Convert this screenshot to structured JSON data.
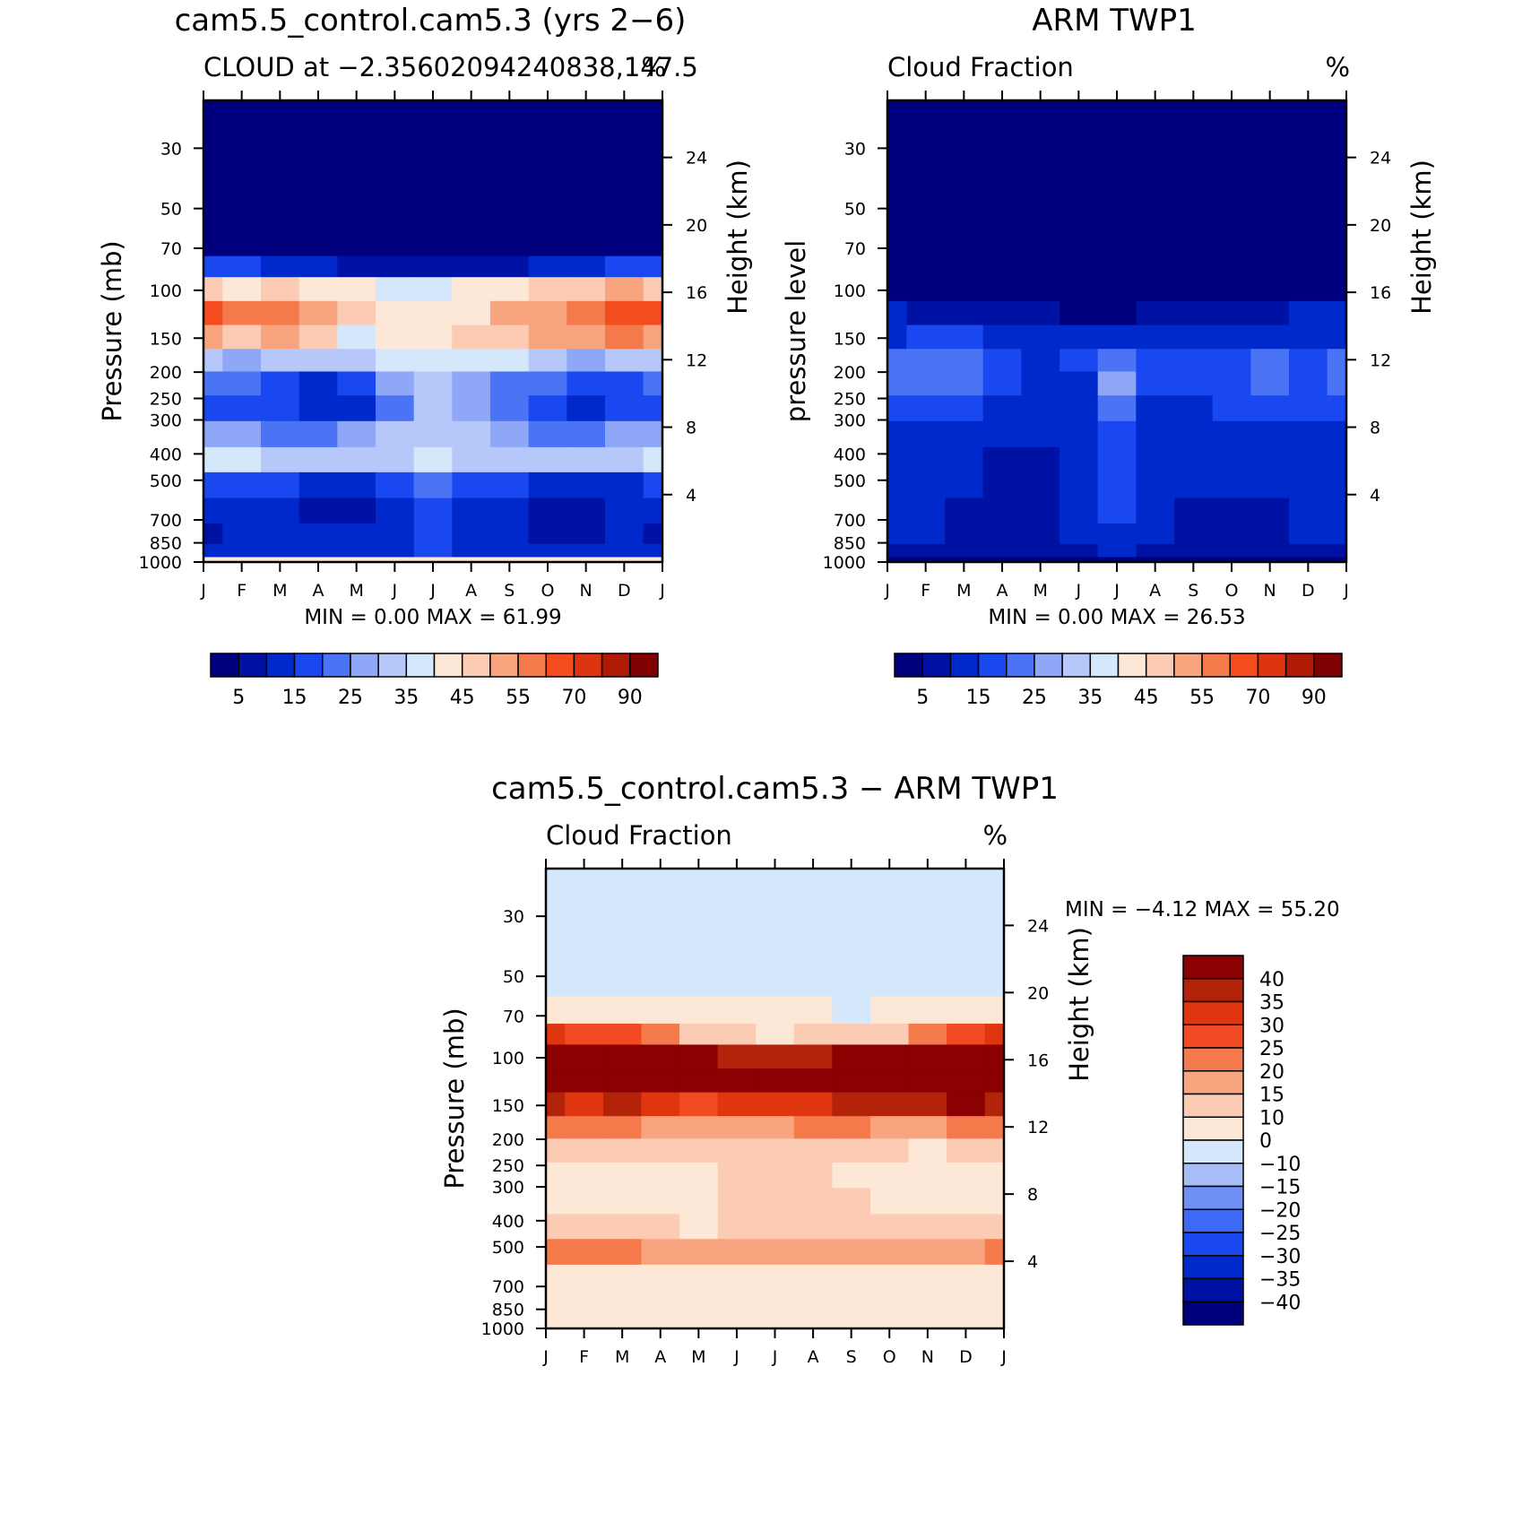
{
  "colors": {
    "full_scale": [
      "#00007f",
      "#0012a3",
      "#0029cc",
      "#1a48f0",
      "#4a73f5",
      "#8ea8f7",
      "#b6c8fa",
      "#d4e7fb",
      "#fde7d6",
      "#fccbb3",
      "#f8a47f",
      "#f57a4b",
      "#f34d1f",
      "#dc3510",
      "#ae1a06",
      "#7f0000"
    ],
    "diff_scale": [
      "#00007f",
      "#0012a3",
      "#0029cc",
      "#1a48f0",
      "#3d6af5",
      "#6f90f6",
      "#a6bdf8",
      "#d4e7fb",
      "#fde7d6",
      "#fccbb3",
      "#f8a47f",
      "#f57a4b",
      "#f24a22",
      "#df3610",
      "#b3230a",
      "#8b0000"
    ]
  },
  "chart_data": [
    {
      "name": "model",
      "type": "heatmap",
      "title": "cam5.5_control.cam5.3 (yrs 2-6)",
      "subtitle_left": "CLOUD at -2.35602094240838,147.5",
      "subtitle_right": "%",
      "ylabel": "Pressure (mb)",
      "ylabel_right": "Height (km)",
      "x_ticks": [
        "J",
        "F",
        "M",
        "A",
        "M",
        "J",
        "J",
        "A",
        "S",
        "O",
        "N",
        "D",
        "J"
      ],
      "y_ticks": [
        "30",
        "50",
        "70",
        "100",
        "150",
        "200",
        "250",
        "300",
        "400",
        "500",
        "700",
        "850",
        "1000"
      ],
      "y_ticks_values": [
        30,
        50,
        70,
        100,
        150,
        200,
        250,
        300,
        400,
        500,
        700,
        850,
        1000
      ],
      "ylim": [
        20,
        1000
      ],
      "y_scale": "log",
      "height_ticks": [
        "24",
        "20",
        "16",
        "12",
        "8",
        "4"
      ],
      "height_ticks_values": [
        24,
        20,
        16,
        12,
        8,
        4
      ],
      "stats": {
        "min_label": "MIN =",
        "min": "0.00",
        "max_label": "MAX =",
        "max": "61.99"
      },
      "colorbar_levels": [
        "5",
        "15",
        "25",
        "35",
        "45",
        "55",
        "70",
        "90"
      ],
      "levels": [
        20,
        50,
        70,
        80,
        100,
        120,
        150,
        180,
        220,
        270,
        340,
        420,
        520,
        650,
        800,
        920,
        1000
      ],
      "months": [
        0,
        1,
        2,
        3,
        4,
        5,
        6,
        7,
        8,
        9,
        10,
        11,
        12
      ],
      "values": [
        [
          1,
          1,
          1,
          1,
          1,
          1,
          1,
          1,
          1,
          1,
          1,
          1,
          1
        ],
        [
          1,
          1,
          1,
          1,
          1,
          1,
          1,
          1,
          1,
          1,
          1,
          1,
          1
        ],
        [
          3,
          3,
          2,
          2,
          1,
          1,
          1,
          1,
          1,
          2,
          2,
          3,
          3
        ],
        [
          18,
          16,
          14,
          11,
          8,
          6,
          5,
          5,
          7,
          10,
          14,
          16,
          18
        ],
        [
          48,
          44,
          46,
          42,
          40,
          38,
          38,
          40,
          44,
          48,
          46,
          50,
          48
        ],
        [
          60,
          56,
          59,
          52,
          48,
          44,
          40,
          42,
          50,
          54,
          56,
          62,
          60
        ],
        [
          52,
          47,
          54,
          45,
          38,
          42,
          44,
          46,
          49,
          50,
          51,
          55,
          52
        ],
        [
          32,
          28,
          33,
          30,
          32,
          36,
          38,
          38,
          36,
          32,
          29,
          30,
          32
        ],
        [
          22,
          20,
          18,
          14,
          18,
          26,
          30,
          28,
          24,
          20,
          17,
          19,
          22
        ],
        [
          18,
          17,
          15,
          11,
          14,
          24,
          30,
          27,
          21,
          16,
          13,
          16,
          18
        ],
        [
          28,
          26,
          24,
          22,
          25,
          30,
          34,
          31,
          27,
          24,
          22,
          25,
          28
        ],
        [
          36,
          36,
          34,
          30,
          30,
          34,
          36,
          34,
          32,
          31,
          30,
          32,
          36
        ],
        [
          18,
          18,
          16,
          12,
          12,
          17,
          22,
          19,
          16,
          13,
          12,
          14,
          18
        ],
        [
          10,
          10,
          10,
          9,
          9,
          12,
          16,
          14,
          11,
          9,
          9,
          10,
          10
        ],
        [
          9,
          10,
          10,
          10,
          10,
          14,
          17,
          14,
          10,
          9,
          9,
          10,
          9
        ],
        [
          12,
          12,
          12,
          12,
          12,
          14,
          15,
          14,
          12,
          12,
          12,
          12,
          12
        ],
        [
          40,
          40,
          40,
          40,
          40,
          40,
          40,
          40,
          40,
          40,
          40,
          40,
          40
        ]
      ]
    },
    {
      "name": "obs",
      "type": "heatmap",
      "title": "ARM TWP1",
      "subtitle_left": "Cloud Fraction",
      "subtitle_right": "%",
      "ylabel": "pressure level",
      "ylabel_right": "Height (km)",
      "x_ticks": [
        "J",
        "F",
        "M",
        "A",
        "M",
        "J",
        "J",
        "A",
        "S",
        "O",
        "N",
        "D",
        "J"
      ],
      "y_ticks": [
        "30",
        "50",
        "70",
        "100",
        "150",
        "200",
        "250",
        "300",
        "400",
        "500",
        "700",
        "850",
        "1000"
      ],
      "y_ticks_values": [
        30,
        50,
        70,
        100,
        150,
        200,
        250,
        300,
        400,
        500,
        700,
        850,
        1000
      ],
      "ylim": [
        20,
        1000
      ],
      "y_scale": "log",
      "height_ticks": [
        "24",
        "20",
        "16",
        "12",
        "8",
        "4"
      ],
      "height_ticks_values": [
        24,
        20,
        16,
        12,
        8,
        4
      ],
      "stats": {
        "min_label": "MIN =",
        "min": "0.00",
        "max_label": "MAX =",
        "max": "26.53"
      },
      "colorbar_levels": [
        "5",
        "15",
        "25",
        "35",
        "45",
        "55",
        "70",
        "90"
      ],
      "levels": [
        20,
        50,
        70,
        80,
        100,
        120,
        150,
        180,
        220,
        270,
        340,
        420,
        520,
        650,
        800,
        920,
        1000
      ],
      "months": [
        0,
        1,
        2,
        3,
        4,
        5,
        6,
        7,
        8,
        9,
        10,
        11,
        12
      ],
      "values": [
        [
          0,
          0,
          0,
          0,
          0,
          0,
          0,
          0,
          0,
          0,
          0,
          0,
          0
        ],
        [
          0,
          0,
          0,
          0,
          0,
          0,
          0,
          0,
          0,
          0,
          0,
          0,
          0
        ],
        [
          0,
          0,
          0,
          0,
          0,
          0,
          0,
          0,
          0,
          0,
          0,
          0,
          0
        ],
        [
          1,
          1,
          1,
          1,
          1,
          1,
          1,
          1,
          1,
          1,
          1,
          1,
          1
        ],
        [
          4,
          3,
          2,
          1,
          1,
          1,
          1,
          2,
          3,
          3,
          4,
          4,
          4
        ],
        [
          10,
          9,
          8,
          6,
          5,
          4,
          4,
          5,
          7,
          8,
          9,
          10,
          10
        ],
        [
          14,
          15,
          15,
          13,
          12,
          12,
          13,
          13,
          14,
          13,
          13,
          13,
          14
        ],
        [
          21,
          21,
          21,
          17,
          14,
          15,
          20,
          17,
          16,
          19,
          21,
          18,
          21
        ],
        [
          20,
          21,
          20,
          17,
          13,
          14,
          25,
          17,
          15,
          19,
          22,
          18,
          20
        ],
        [
          19,
          19,
          16,
          14,
          12,
          14,
          20,
          14,
          13,
          18,
          19,
          17,
          19
        ],
        [
          14,
          14,
          12,
          10,
          11,
          13,
          16,
          13,
          12,
          13,
          14,
          13,
          14
        ],
        [
          13,
          13,
          10,
          8,
          9,
          14,
          16,
          13,
          11,
          11,
          12,
          13,
          13
        ],
        [
          13,
          13,
          10,
          6,
          9,
          14,
          16,
          13,
          10,
          10,
          11,
          13,
          13
        ],
        [
          12,
          12,
          9,
          5,
          8,
          12,
          15,
          12,
          9,
          6,
          7,
          11,
          12
        ],
        [
          11,
          11,
          9,
          6,
          8,
          11,
          14,
          11,
          9,
          5,
          6,
          10,
          11
        ],
        [
          9,
          9,
          8,
          6,
          7,
          9,
          10,
          9,
          8,
          6,
          7,
          9,
          9
        ],
        [
          4,
          4,
          4,
          4,
          4,
          4,
          4,
          4,
          4,
          4,
          4,
          4,
          4
        ]
      ]
    },
    {
      "name": "diff",
      "type": "heatmap",
      "title": "cam5.5_control.cam5.3 - ARM TWP1",
      "subtitle_left": "Cloud Fraction",
      "subtitle_right": "%",
      "ylabel": "Pressure (mb)",
      "ylabel_right": "Height (km)",
      "x_ticks": [
        "J",
        "F",
        "M",
        "A",
        "M",
        "J",
        "J",
        "A",
        "S",
        "O",
        "N",
        "D",
        "J"
      ],
      "y_ticks": [
        "30",
        "50",
        "70",
        "100",
        "150",
        "200",
        "250",
        "300",
        "400",
        "500",
        "700",
        "850",
        "1000"
      ],
      "y_ticks_values": [
        30,
        50,
        70,
        100,
        150,
        200,
        250,
        300,
        400,
        500,
        700,
        850,
        1000
      ],
      "ylim": [
        20,
        1000
      ],
      "y_scale": "log",
      "height_ticks": [
        "24",
        "20",
        "16",
        "12",
        "8",
        "4"
      ],
      "height_ticks_values": [
        24,
        20,
        16,
        12,
        8,
        4
      ],
      "stats": {
        "min_label": "MIN =",
        "min": "-4.12",
        "max_label": "MAX =",
        "max": "55.20"
      },
      "colorbar_levels": [
        "40",
        "35",
        "30",
        "25",
        "20",
        "15",
        "10",
        "0",
        "-10",
        "-15",
        "-20",
        "-25",
        "-30",
        "-35",
        "-40"
      ],
      "levels": [
        20,
        50,
        70,
        80,
        100,
        120,
        150,
        180,
        220,
        270,
        340,
        420,
        520,
        650,
        800,
        920,
        1000
      ],
      "months": [
        0,
        1,
        2,
        3,
        4,
        5,
        6,
        7,
        8,
        9,
        10,
        11,
        12
      ],
      "values": [
        [
          -2,
          -2,
          -2,
          -2,
          -2,
          -2,
          -2,
          -2,
          -2,
          -2,
          -2,
          -2,
          -2
        ],
        [
          -1,
          -1,
          -1,
          -1,
          -1,
          -1,
          -1,
          -1,
          -1,
          -1,
          -1,
          -1,
          -1
        ],
        [
          3,
          3,
          3,
          3,
          3,
          3,
          3,
          1,
          -1,
          3,
          3,
          3,
          3
        ],
        [
          30,
          28,
          25,
          20,
          12,
          10,
          9,
          10,
          11,
          14,
          22,
          26,
          30
        ],
        [
          45,
          45,
          48,
          45,
          42,
          38,
          36,
          36,
          40,
          47,
          47,
          50,
          48
        ],
        [
          52,
          50,
          54,
          48,
          45,
          42,
          40,
          42,
          45,
          49,
          52,
          55,
          52
        ],
        [
          38,
          33,
          38,
          32,
          28,
          30,
          31,
          33,
          35,
          37,
          38,
          42,
          38
        ],
        [
          22,
          20,
          20,
          18,
          18,
          19,
          18,
          20,
          21,
          18,
          17,
          20,
          22
        ],
        [
          12,
          12,
          12,
          12,
          12,
          10,
          12,
          12,
          14,
          10,
          6,
          12,
          12
        ],
        [
          5,
          5,
          5,
          4,
          3,
          10,
          12,
          12,
          8,
          5,
          1,
          5,
          5
        ],
        [
          5,
          5,
          5,
          6,
          6,
          12,
          12,
          12,
          12,
          8,
          5,
          5,
          5
        ],
        [
          10,
          10,
          12,
          10,
          8,
          12,
          12,
          12,
          12,
          10,
          10,
          10,
          10
        ],
        [
          22,
          20,
          24,
          18,
          16,
          16,
          16,
          18,
          18,
          18,
          18,
          18,
          22
        ],
        [
          7,
          7,
          8,
          6,
          6,
          5,
          6,
          6,
          7,
          6,
          6,
          6,
          7
        ],
        [
          5,
          5,
          5,
          4,
          4,
          4,
          4,
          4,
          4,
          4,
          4,
          4,
          4
        ],
        [
          6,
          8,
          9,
          9,
          9,
          9,
          9,
          8,
          8,
          6,
          6,
          6,
          6
        ],
        [
          3,
          3,
          3,
          3,
          3,
          3,
          3,
          3,
          3,
          3,
          3,
          3,
          3
        ]
      ]
    }
  ]
}
